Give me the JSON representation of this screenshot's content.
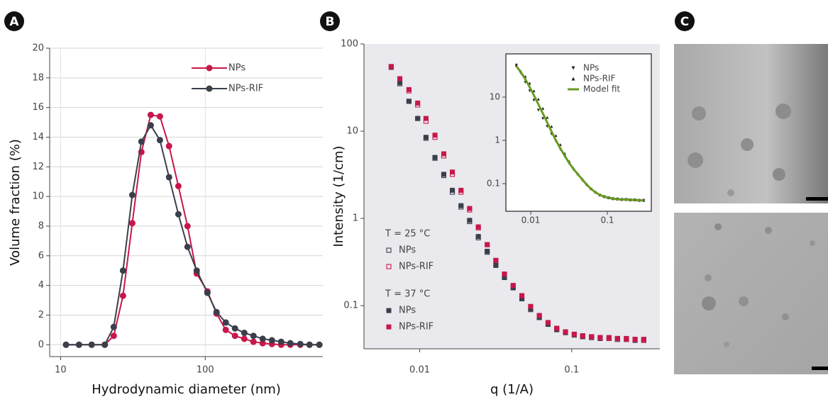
{
  "panel_labels": [
    "A",
    "B",
    "C"
  ],
  "chart_data": [
    {
      "type": "line",
      "ylabel": "Volume fraction (%)",
      "xlabel": "Hydrodynamic diameter (nm)",
      "xscale": "log",
      "xlim": [
        8.4,
        650
      ],
      "xticks": [
        10,
        100
      ],
      "ylim": [
        -0.8,
        20
      ],
      "yticks": [
        0,
        2,
        4,
        6,
        8,
        10,
        12,
        14,
        16,
        18,
        20
      ],
      "grid": true,
      "legend": "upper center",
      "x": [
        10.9,
        13.4,
        16.4,
        20.2,
        23.3,
        27.0,
        31.3,
        36.2,
        42.0,
        48.6,
        56.2,
        65.2,
        75.4,
        87.3,
        103.5,
        119.7,
        138.6,
        160.6,
        186.2,
        215.4,
        249.5,
        289.1,
        334.7,
        387.3,
        453.9,
        526.0,
        615.2
      ],
      "series": [
        {
          "name": "NPs",
          "color": "#c8174a",
          "marker": "circle",
          "values": [
            0,
            0,
            0,
            0,
            0.6,
            3.3,
            8.2,
            13.0,
            15.5,
            15.4,
            13.4,
            10.7,
            8.0,
            4.8,
            3.6,
            2.1,
            1.0,
            0.6,
            0.4,
            0.2,
            0.1,
            0.05,
            0,
            0,
            0,
            0,
            0
          ]
        },
        {
          "name": "NPs-RIF",
          "color": "#3a3f4b",
          "marker": "circle",
          "values": [
            0,
            0,
            0,
            0,
            1.2,
            5.0,
            10.1,
            13.7,
            14.8,
            13.8,
            11.3,
            8.8,
            6.6,
            5.0,
            3.5,
            2.2,
            1.5,
            1.1,
            0.8,
            0.6,
            0.4,
            0.3,
            0.2,
            0.1,
            0.05,
            0,
            0
          ]
        }
      ]
    },
    {
      "type": "scatter",
      "ylabel": "Intensity  (1/cm)",
      "xlabel": "q  (1/A)",
      "xscale": "log",
      "yscale": "log",
      "xlim": [
        0.0043,
        0.38
      ],
      "xticks": [
        0.01,
        0.1
      ],
      "ylim": [
        0.032,
        100
      ],
      "yticks": [
        0.1,
        1,
        10,
        100
      ],
      "grid": false,
      "legend": "lower left",
      "x": [
        0.0065,
        0.0074,
        0.0085,
        0.0097,
        0.011,
        0.0126,
        0.0144,
        0.0164,
        0.0187,
        0.0213,
        0.0243,
        0.0278,
        0.0317,
        0.0361,
        0.0412,
        0.047,
        0.0537,
        0.0612,
        0.0699,
        0.0797,
        0.091,
        0.104,
        0.118,
        0.135,
        0.154,
        0.176,
        0.2,
        0.229,
        0.261,
        0.298
      ],
      "series": [
        {
          "name": "NPs",
          "group": "T = 25 °C",
          "color": "#3a3f4b",
          "marker": "open-square",
          "values": [
            54,
            35,
            22,
            14,
            8.3,
            4.9,
            3.1,
            2.0,
            1.35,
            0.92,
            0.6,
            0.41,
            0.29,
            0.21,
            0.16,
            0.12,
            0.09,
            0.073,
            0.061,
            0.053,
            0.049,
            0.046,
            0.044,
            0.043,
            0.042,
            0.042,
            0.041,
            0.041,
            0.04,
            0.04
          ]
        },
        {
          "name": "NPs-RIF",
          "group": "T = 25 °C",
          "color": "#c8174a",
          "marker": "open-square",
          "values": [
            55,
            39,
            29,
            20,
            13,
            8.5,
            5.2,
            3.2,
            2.0,
            1.25,
            0.78,
            0.5,
            0.33,
            0.23,
            0.17,
            0.13,
            0.097,
            0.077,
            0.064,
            0.055,
            0.05,
            0.047,
            0.045,
            0.044,
            0.043,
            0.042,
            0.042,
            0.041,
            0.041,
            0.04
          ]
        },
        {
          "name": "NPs",
          "group": "T = 37 °C",
          "color": "#3a3f4b",
          "marker": "square",
          "values": [
            55,
            36,
            22,
            14,
            8.5,
            5.0,
            3.2,
            2.1,
            1.4,
            0.95,
            0.62,
            0.42,
            0.29,
            0.21,
            0.16,
            0.12,
            0.092,
            0.074,
            0.062,
            0.054,
            0.05,
            0.047,
            0.045,
            0.044,
            0.043,
            0.043,
            0.042,
            0.042,
            0.041,
            0.041
          ]
        },
        {
          "name": "NPs-RIF",
          "group": "T = 37 °C",
          "color": "#c8174a",
          "marker": "square",
          "values": [
            55,
            40,
            30,
            21,
            14,
            9,
            5.5,
            3.4,
            2.1,
            1.3,
            0.8,
            0.5,
            0.33,
            0.23,
            0.17,
            0.13,
            0.098,
            0.077,
            0.064,
            0.055,
            0.05,
            0.047,
            0.045,
            0.044,
            0.043,
            0.043,
            0.042,
            0.042,
            0.041,
            0.041
          ]
        }
      ]
    },
    {
      "type": "scatter",
      "xscale": "log",
      "yscale": "log",
      "xlim": [
        0.00474,
        0.375
      ],
      "xticks": [
        0.01,
        0.1
      ],
      "ylim": [
        0.023,
        100
      ],
      "yticks": [
        0.1,
        1,
        10
      ],
      "grid": false,
      "legend": "upper right",
      "x": [
        0.0065,
        0.0074,
        0.0085,
        0.0097,
        0.011,
        0.0126,
        0.0144,
        0.0164,
        0.0187,
        0.0213,
        0.0243,
        0.0278,
        0.0317,
        0.0361,
        0.0412,
        0.047,
        0.0537,
        0.0612,
        0.0699,
        0.0797,
        0.091,
        0.104,
        0.118,
        0.135,
        0.154,
        0.176,
        0.2,
        0.229,
        0.261,
        0.298
      ],
      "series": [
        {
          "name": "NPs",
          "color": "#222222",
          "marker": "triangle-down",
          "values": [
            55,
            36,
            22,
            14,
            8.5,
            5.0,
            3.2,
            2.1,
            1.4,
            0.95,
            0.62,
            0.42,
            0.29,
            0.21,
            0.16,
            0.12,
            0.092,
            0.074,
            0.062,
            0.054,
            0.05,
            0.047,
            0.045,
            0.044,
            0.043,
            0.043,
            0.042,
            0.042,
            0.041,
            0.041
          ]
        },
        {
          "name": "NPs-RIF",
          "color": "#222222",
          "marker": "triangle-up",
          "values": [
            55,
            40,
            30,
            21,
            14,
            9,
            5.5,
            3.4,
            2.1,
            1.3,
            0.8,
            0.5,
            0.33,
            0.23,
            0.17,
            0.13,
            0.098,
            0.077,
            0.064,
            0.055,
            0.05,
            0.047,
            0.045,
            0.044,
            0.043,
            0.043,
            0.042,
            0.042,
            0.041,
            0.041
          ]
        },
        {
          "name": "Model fit",
          "color": "#6a9a23",
          "marker": "line",
          "values": [
            52,
            38,
            26,
            17,
            11,
            6.8,
            4.2,
            2.6,
            1.6,
            1.0,
            0.66,
            0.44,
            0.3,
            0.22,
            0.165,
            0.125,
            0.095,
            0.076,
            0.063,
            0.055,
            0.05,
            0.047,
            0.045,
            0.044,
            0.043,
            0.043,
            0.042,
            0.042,
            0.041,
            0.041
          ]
        }
      ]
    }
  ]
}
